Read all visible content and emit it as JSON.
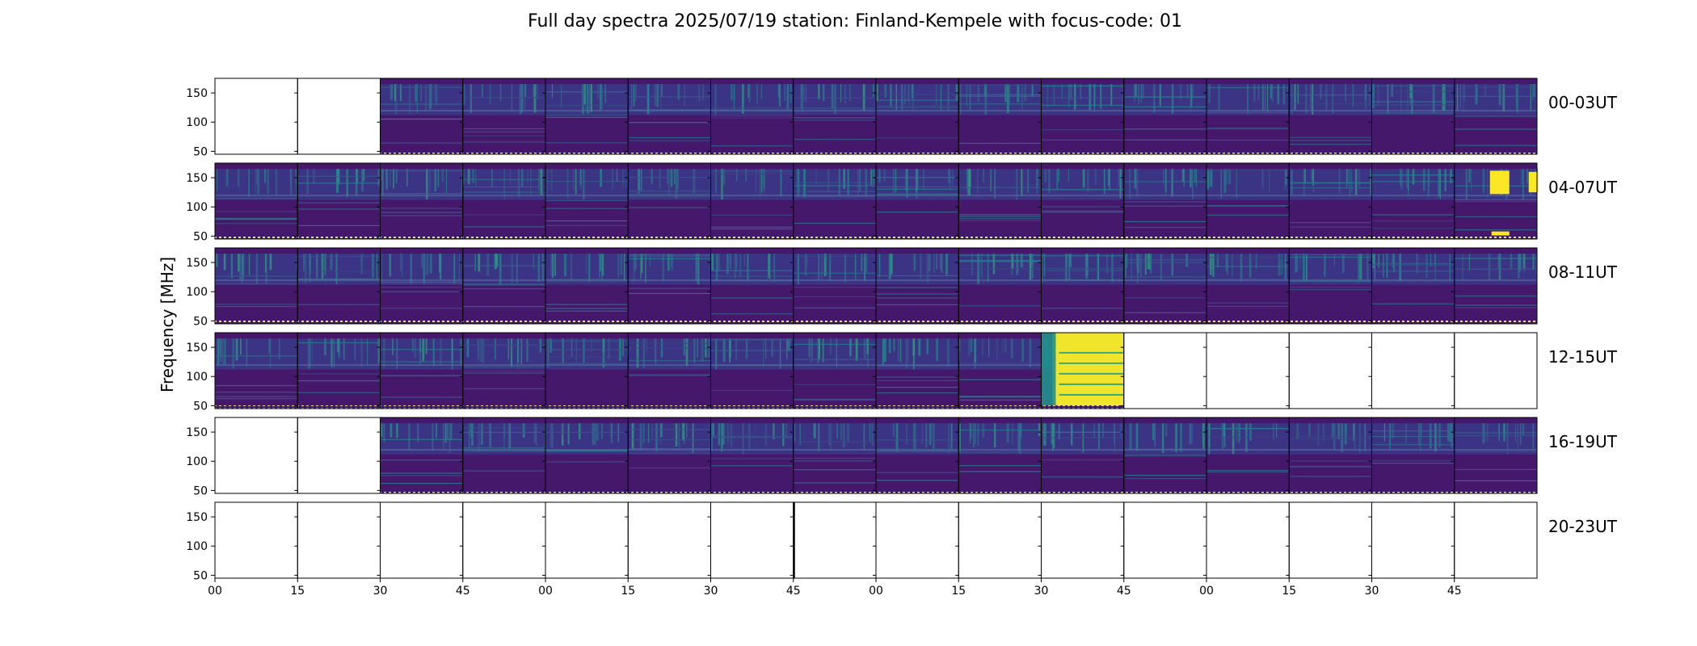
{
  "chart_data": {
    "type": "heatmap",
    "title": "Full day spectra 2025/07/19 station: Finland-Kempele with focus-code: 01",
    "ylabel": "Frequency [MHz]",
    "xlabel": "",
    "yticks": [
      50,
      100,
      150
    ],
    "ylim": [
      45,
      175
    ],
    "xticks": [
      "00",
      "15",
      "30",
      "45",
      "00",
      "15",
      "30",
      "45",
      "00",
      "15",
      "30",
      "45",
      "00",
      "15",
      "30",
      "45"
    ],
    "colormap": "viridis",
    "colors": {
      "low": "#440154",
      "mid": "#21908d",
      "high": "#fde725"
    },
    "rows": [
      {
        "label": "00-03UT",
        "panels_with_data": [
          false,
          false,
          true,
          true,
          true,
          true,
          true,
          true,
          true,
          true,
          true,
          true,
          true,
          true,
          true,
          true
        ]
      },
      {
        "label": "04-07UT",
        "panels_with_data": [
          true,
          true,
          true,
          true,
          true,
          true,
          true,
          true,
          true,
          true,
          true,
          true,
          true,
          true,
          true,
          true
        ]
      },
      {
        "label": "08-11UT",
        "panels_with_data": [
          true,
          true,
          true,
          true,
          true,
          true,
          true,
          true,
          true,
          true,
          true,
          true,
          true,
          true,
          true,
          true
        ]
      },
      {
        "label": "12-15UT",
        "panels_with_data": [
          true,
          true,
          true,
          true,
          true,
          true,
          true,
          true,
          true,
          true,
          true,
          false,
          false,
          false,
          false,
          false
        ]
      },
      {
        "label": "16-19UT",
        "panels_with_data": [
          false,
          false,
          true,
          true,
          true,
          true,
          true,
          true,
          true,
          true,
          true,
          true,
          true,
          true,
          true,
          true
        ]
      },
      {
        "label": "20-23UT",
        "panels_with_data": [
          false,
          false,
          false,
          false,
          false,
          false,
          false,
          false,
          false,
          false,
          false,
          false,
          false,
          false,
          false,
          false
        ]
      }
    ]
  }
}
